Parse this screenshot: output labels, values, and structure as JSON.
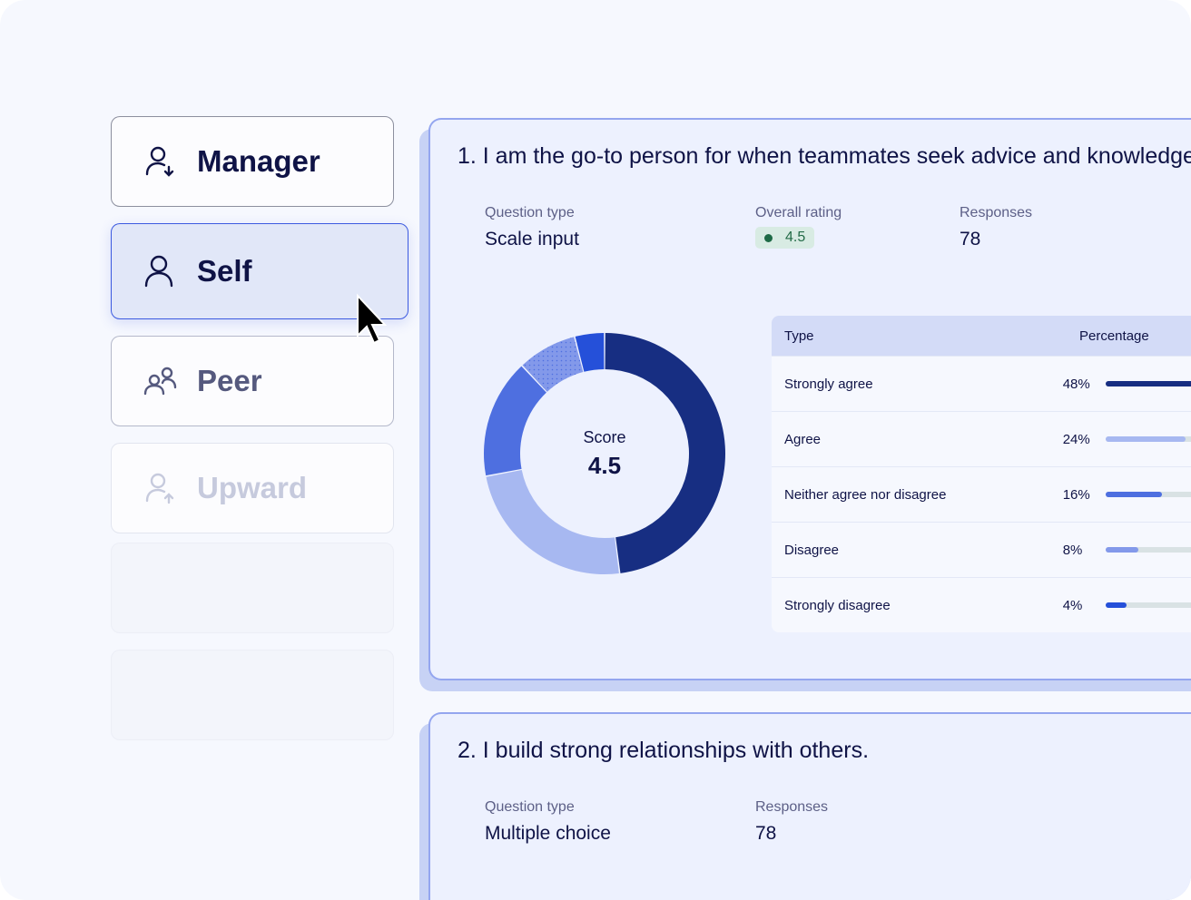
{
  "roles": [
    {
      "label": "Manager",
      "icon": "user-arrow-down-icon",
      "state": "default"
    },
    {
      "label": "Self",
      "icon": "user-icon",
      "state": "selected"
    },
    {
      "label": "Peer",
      "icon": "users-icon",
      "state": "default"
    },
    {
      "label": "Upward",
      "icon": "user-arrow-up-icon",
      "state": "disabled"
    }
  ],
  "questions": [
    {
      "title": "1. I am the go-to person for when teammates seek advice and knowledge.",
      "question_type_label": "Question type",
      "question_type": "Scale input",
      "rating_label": "Overall rating",
      "rating": "4.5",
      "responses_label": "Responses",
      "responses": "78"
    },
    {
      "title": "2. I build strong relationships with others.",
      "question_type_label": "Question type",
      "question_type": "Multiple choice",
      "responses_label": "Responses",
      "responses": "78"
    }
  ],
  "chart_data": {
    "type": "pie",
    "center_label": "Score",
    "center_value": "4.5",
    "table_headers": [
      "Type",
      "Percentage"
    ],
    "categories": [
      "Strongly agree",
      "Agree",
      "Neither agree nor disagree",
      "Disagree",
      "Strongly disagree"
    ],
    "values": [
      48,
      24,
      16,
      8,
      4
    ],
    "value_labels": [
      "48%",
      "24%",
      "16%",
      "8%",
      "4%"
    ],
    "colors": [
      "#172e82",
      "#a7b8f1",
      "#4e6fe0",
      "#8399ea",
      "#2550d9"
    ]
  }
}
